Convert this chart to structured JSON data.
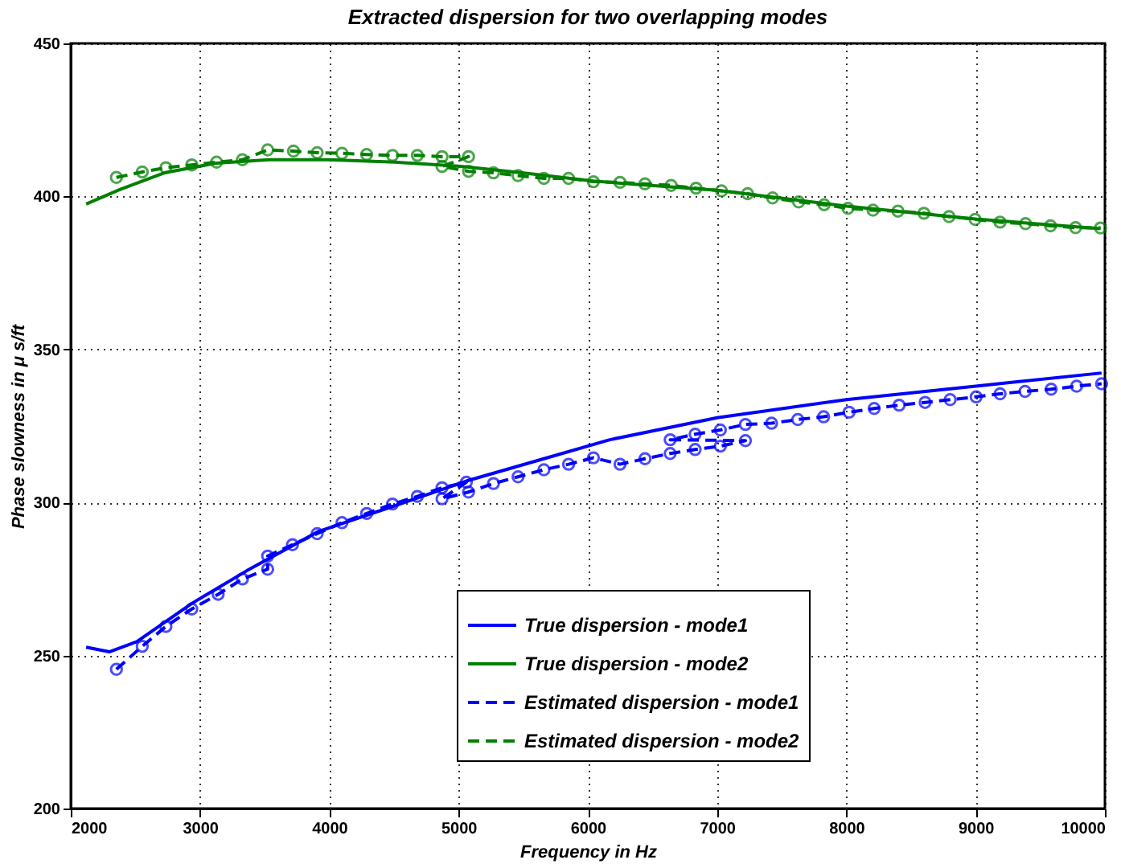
{
  "chart_data": {
    "type": "line",
    "title": "Extracted dispersion for two overlapping modes",
    "xlabel": "Frequency in Hz",
    "ylabel": "Phase slowness in μ s/ft",
    "xlim": [
      2000,
      10000
    ],
    "xticks": [
      2000,
      3000,
      4000,
      5000,
      6000,
      7000,
      8000,
      9000,
      10000
    ],
    "ylim": [
      200,
      450
    ],
    "yticks": [
      200,
      250,
      300,
      350,
      400,
      450
    ],
    "grid": true,
    "legend": "bottom",
    "series": [
      {
        "name": "True dispersion - mode1",
        "color": "#0000ff",
        "marker": "none",
        "line_style": "solid",
        "x": [
          2119,
          2298,
          2511,
          2936,
          3362,
          3915,
          4511,
          5060,
          5660,
          6170,
          7000,
          8000,
          9000,
          9974
        ],
        "values": [
          252.7,
          251.2,
          254.5,
          267,
          277.7,
          290.5,
          299,
          307,
          314.3,
          320.5,
          327.7,
          333.6,
          338,
          342.3
        ]
      },
      {
        "name": "True dispersion - mode2",
        "color": "#008000",
        "marker": "none",
        "line_style": "solid",
        "x": [
          2119,
          2383,
          2723,
          3128,
          3532,
          4000,
          4511,
          5021,
          5490,
          6043,
          7000,
          8000,
          9000,
          9966
        ],
        "values": [
          397.5,
          402.3,
          407.7,
          410.9,
          412,
          412,
          411.2,
          409.8,
          407.7,
          405,
          402,
          396.8,
          392.6,
          389.5
        ]
      },
      {
        "name": "Estimated dispersion - mode1",
        "color": "#0000ff",
        "marker": "circle",
        "line_style": "dashed",
        "x": [
          2353,
          2553,
          2736,
          2936,
          3140,
          3328,
          3523,
          3523,
          3715,
          3906,
          4098,
          4289,
          4489,
          4681,
          4872,
          5060,
          4872,
          5077,
          5270,
          5460,
          5660,
          5851,
          6043,
          6249,
          6442,
          6637,
          6830,
          7025,
          7219,
          6637,
          6830,
          7025,
          7219,
          7421,
          7624,
          7824,
          8021,
          8215,
          8408,
          8609,
          8803,
          9004,
          9189,
          9382,
          9584,
          9781,
          9974
        ],
        "values": [
          245.5,
          253,
          259.5,
          265.2,
          270,
          275,
          278.2,
          282.5,
          286.2,
          289.8,
          293.4,
          296.4,
          299.5,
          302,
          304.8,
          306.6,
          301.2,
          303.4,
          306.2,
          308.4,
          310.7,
          312.5,
          314.6,
          312.5,
          314.3,
          316,
          317.3,
          318.4,
          320.2,
          320.5,
          322.3,
          323.7,
          325.5,
          325.9,
          327.1,
          328,
          329.5,
          330.7,
          331.8,
          332.7,
          333.6,
          334.5,
          335.5,
          336.3,
          337,
          338,
          338.8
        ]
      },
      {
        "name": "Estimated dispersion - mode2",
        "color": "#008000",
        "marker": "circle",
        "line_style": "dashed",
        "x": [
          2353,
          2553,
          2736,
          2936,
          3128,
          3328,
          3523,
          3723,
          3906,
          4098,
          4289,
          4489,
          4681,
          4872,
          5077,
          4872,
          5077,
          5270,
          5460,
          5660,
          5851,
          6043,
          6249,
          6442,
          6644,
          6837,
          7034,
          7236,
          7429,
          7631,
          7828,
          8012,
          8206,
          8399,
          8600,
          8794,
          8996,
          9189,
          9386,
          9579,
          9773,
          9966
        ],
        "values": [
          406.2,
          408,
          409.4,
          410.3,
          411.2,
          412,
          415.2,
          414.8,
          414.3,
          414.1,
          413.7,
          413.4,
          413.4,
          413,
          413,
          409.8,
          408.2,
          407.7,
          406.8,
          405.9,
          405.9,
          404.8,
          404.6,
          404.1,
          403.6,
          402.7,
          401.8,
          400.9,
          399.5,
          398.2,
          397.3,
          396.1,
          395.5,
          395.2,
          394.5,
          393.4,
          392.5,
          391.6,
          391.1,
          390.4,
          389.8,
          389.7
        ]
      }
    ]
  }
}
